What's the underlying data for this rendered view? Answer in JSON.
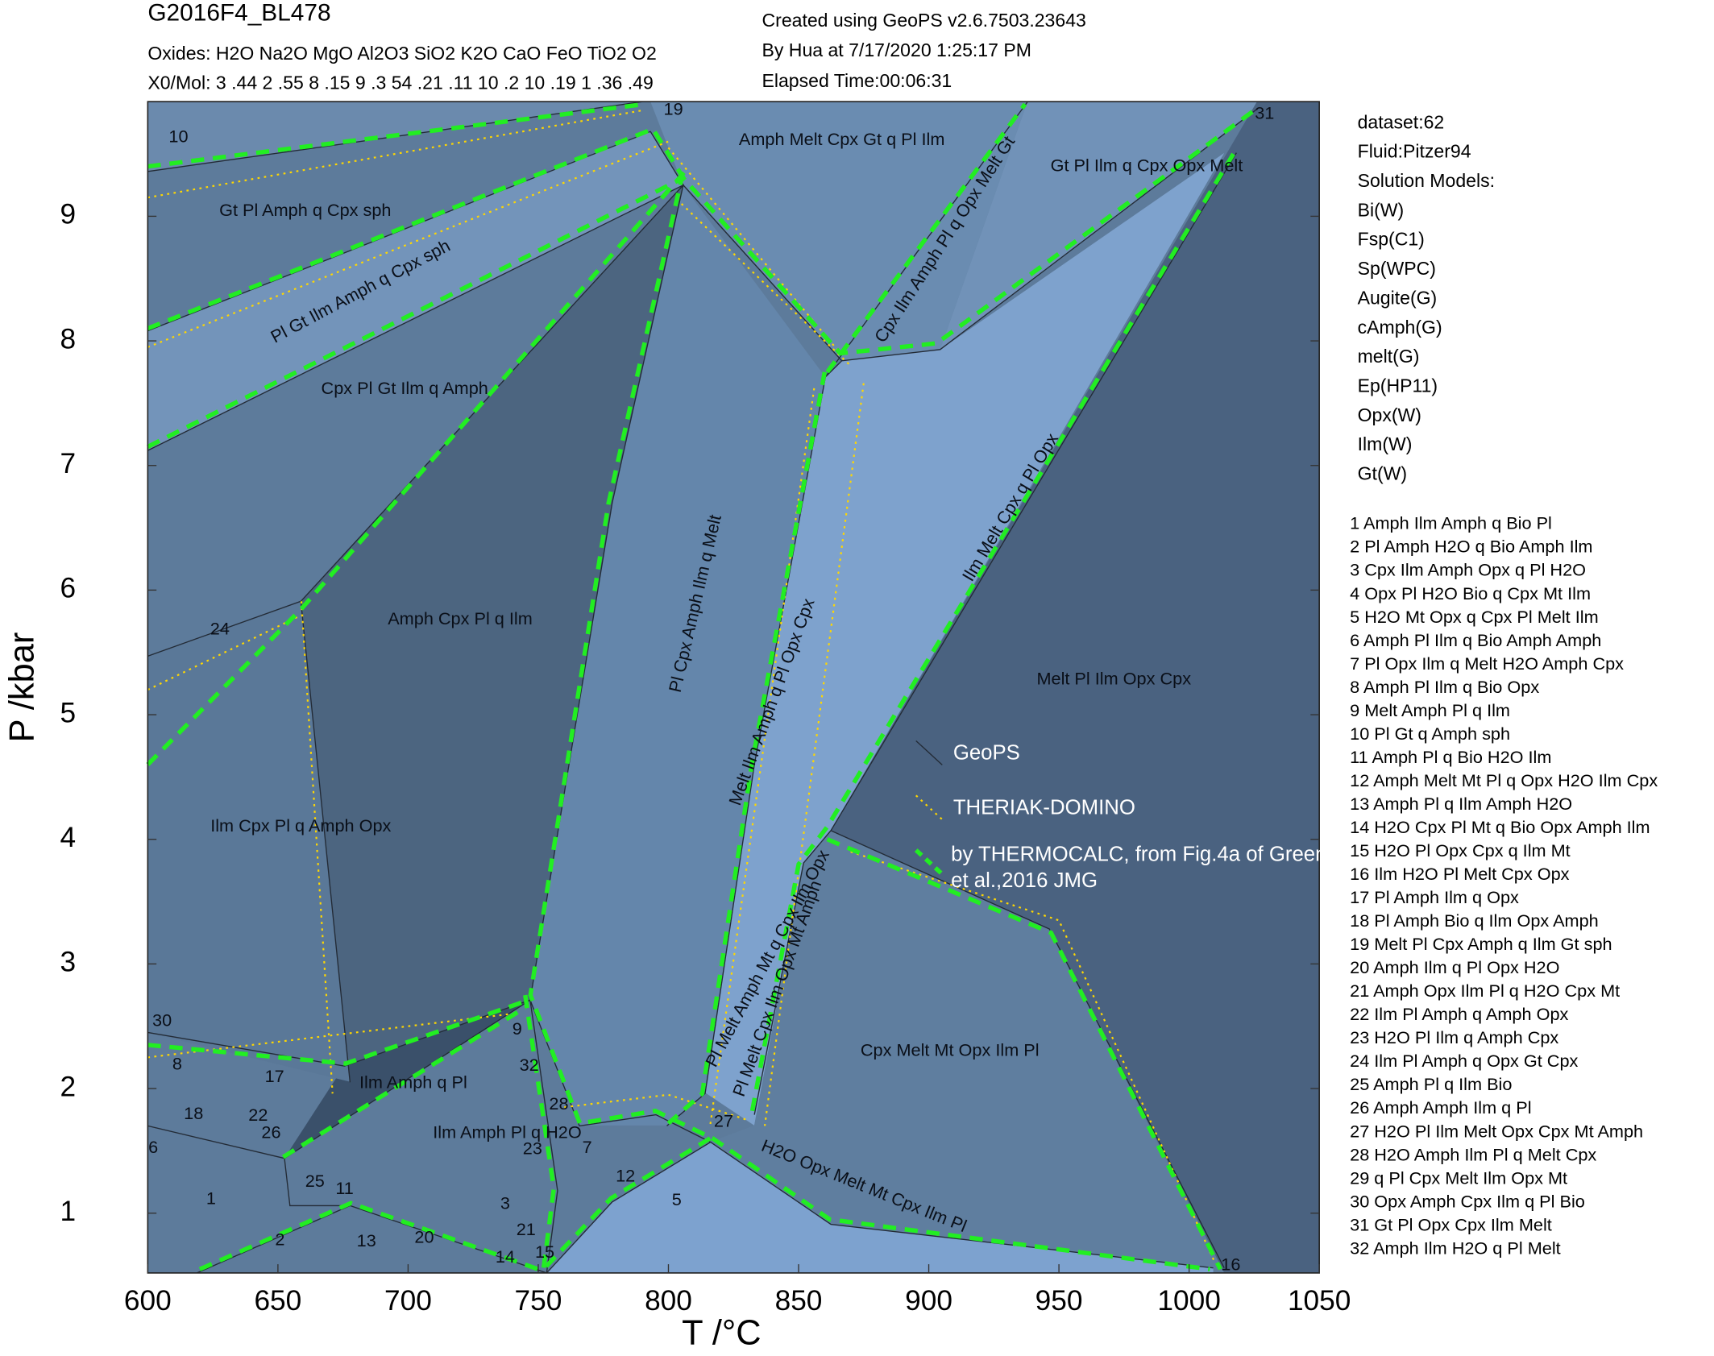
{
  "chart_data": {
    "type": "phase-diagram",
    "title": "G2016F4_BL478",
    "oxides": "Oxides: H2O Na2O MgO Al2O3 SiO2 K2O CaO FeO TiO2 O2",
    "composition": "X0/Mol: 3 .44 2 .55 8 .15 9 .3 54 .21 .11 10 .2 10 .19 1 .36 .49",
    "created": "Created using GeoPS v2.6.7503.23643",
    "author": "By Hua at 7/17/2020 1:25:17 PM",
    "elapsed": "Elapsed Time:00:06:31",
    "x_label": "T /°C",
    "y_label": "P /kbar",
    "xlim": [
      600,
      1050
    ],
    "ylim": [
      0.52,
      9.92
    ],
    "xticks": [
      600,
      650,
      700,
      750,
      800,
      850,
      900,
      950,
      1000,
      1050
    ],
    "yticks": [
      1,
      2,
      3,
      4,
      5,
      6,
      7,
      8,
      9
    ],
    "series": [
      {
        "name": "GeoPS",
        "color": "#232b36",
        "style": "solid",
        "x": [
          600,
          790.2,
          null,
          600,
          793.1,
          805.7,
          866.6,
          904.4,
          1026.1,
          null,
          600,
          805.7,
          778.4,
          746.9,
          765.8,
          795.2,
          816.2,
          862.4,
          1009.3,
          null,
          860.3,
          938,
          null,
          866.6,
          860.3,
          833,
          814.1,
          799.4,
          null,
          1018.2,
          862.4,
          851.9,
          833,
          null,
          862.4,
          946.3,
          1013.5,
          null,
          816.2,
          778.4,
          753.2,
          null,
          600,
          658.8,
          805.7,
          null,
          658.8,
          677.7,
          null,
          600,
          675.6,
          746.9,
          null,
          652.5,
          746.9,
          null,
          746.9,
          757.4,
          753.2,
          null,
          618.9,
          677.7,
          753.2,
          null,
          652.5,
          654.6,
          677.7,
          null,
          600,
          652.5
        ],
        "values": [
          9.36,
          9.92,
          null,
          8.08,
          9.68,
          9.25,
          7.84,
          7.93,
          9.86,
          null,
          7.12,
          9.25,
          6.7,
          2.71,
          1.7,
          1.79,
          1.57,
          0.91,
          0.56,
          null,
          7.71,
          9.92,
          null,
          7.84,
          7.71,
          4.6,
          1.96,
          1.7,
          null,
          9.51,
          4.07,
          3.81,
          1.79,
          null,
          4.07,
          3.28,
          0.56,
          null,
          1.57,
          1.09,
          0.52,
          null,
          5.47,
          5.91,
          9.25,
          null,
          5.91,
          2.05,
          null,
          2.45,
          2.18,
          2.71,
          null,
          1.44,
          2.71,
          null,
          2.71,
          1.18,
          0.52,
          null,
          0.52,
          1.06,
          0.52,
          null,
          1.44,
          1.06,
          1.06,
          null,
          1.7,
          1.44
        ]
      },
      {
        "name": "THERIAK-DOMINO",
        "color": "#ffd700",
        "style": "dotted",
        "x": [
          600,
          790,
          null,
          600,
          800,
          null,
          856,
          816,
          null,
          875,
          837,
          null,
          659,
          671,
          null,
          600,
          659,
          null,
          800,
          866,
          null,
          805,
          870,
          null,
          600,
          740,
          null,
          760,
          800,
          830,
          null,
          870,
          950,
          1010
        ],
        "values": [
          9.15,
          9.85,
          null,
          7.95,
          9.6,
          null,
          7.62,
          1.7,
          null,
          7.66,
          1.7,
          null,
          5.91,
          1.96,
          null,
          5.2,
          5.8,
          null,
          9.55,
          7.9,
          null,
          9.1,
          7.8,
          null,
          2.25,
          2.6,
          null,
          1.85,
          1.95,
          1.75,
          null,
          3.9,
          3.35,
          0.6
        ]
      },
      {
        "name": "by THERMOCALC, from Fig.4a of Green et al.,2016 JMG",
        "color": "#22ee22",
        "style": "dashed",
        "x": [
          600,
          791,
          null,
          600,
          794,
          806,
          866,
          903,
          1027,
          null,
          600,
          805,
          777,
          747,
          766,
          795,
          817,
          862,
          1008,
          null,
          861,
          937,
          null,
          860,
          832,
          813,
          800,
          null,
          1017,
          861,
          850,
          832,
          null,
          861,
          947,
          1012,
          null,
          816,
          778,
          752,
          null,
          600,
          659,
          806,
          null,
          600,
          676,
          745,
          null,
          652,
          745,
          null,
          745,
          756,
          752,
          null,
          620,
          678,
          750
        ],
        "values": [
          9.4,
          9.9,
          null,
          8.1,
          9.7,
          9.3,
          7.9,
          7.98,
          9.88,
          null,
          7.15,
          9.3,
          6.7,
          2.75,
          1.72,
          1.82,
          1.6,
          0.95,
          0.55,
          null,
          7.75,
          9.9,
          null,
          7.75,
          4.6,
          1.96,
          1.72,
          null,
          9.5,
          4.1,
          3.8,
          1.8,
          null,
          4.0,
          3.25,
          0.55,
          null,
          1.6,
          1.12,
          0.55,
          null,
          4.6,
          5.85,
          9.35,
          null,
          2.35,
          2.2,
          2.7,
          null,
          1.45,
          2.65,
          null,
          2.75,
          1.2,
          0.55,
          null,
          0.55,
          1.08,
          0.55
        ]
      }
    ],
    "annotations": [
      {
        "text": "10",
        "x": 611.8,
        "y": 9.63
      },
      {
        "text": "19",
        "x": 801.9,
        "y": 9.85
      },
      {
        "text": "Amph Melt Cpx Gt q Pl Ilm",
        "x": 866.6,
        "y": 9.61
      },
      {
        "text": "31",
        "x": 1029,
        "y": 9.82
      },
      {
        "text": "Gt Pl Ilm q Cpx Opx Melt",
        "x": 983.7,
        "y": 9.4
      },
      {
        "text": "Gt Pl Amph q Cpx sph",
        "x": 660.5,
        "y": 9.04
      },
      {
        "text": "Pl Gt Ilm Amph q Cpx sph",
        "x": 681.9,
        "y": 8.39
      },
      {
        "text": "Cpx Pl Gt Ilm q Amph",
        "x": 698.7,
        "y": 7.61
      },
      {
        "text": "Cpx Ilm Amph Pl q Opx Melt Gt",
        "x": 906.5,
        "y": 8.81
      },
      {
        "text": "Ilm Melt Cpx q Pl Opx",
        "x": 931.7,
        "y": 6.66
      },
      {
        "text": "Amph Cpx Pl q Ilm",
        "x": 720,
        "y": 5.76
      },
      {
        "text": "Pl Cpx Amph Ilm q Melt",
        "x": 810.7,
        "y": 5.89
      },
      {
        "text": "Melt Ilm Amph q Pl Opx Cpx",
        "x": 840.1,
        "y": 5.1
      },
      {
        "text": "Melt Pl Ilm Opx Cpx",
        "x": 971.1,
        "y": 5.28
      },
      {
        "text": "24",
        "x": 627.7,
        "y": 5.68
      },
      {
        "text": "Ilm Cpx Pl q Amph Opx",
        "x": 658.8,
        "y": 4.1
      },
      {
        "text": "Cpx Melt Mt Opx Ilm Pl",
        "x": 908.1,
        "y": 2.3
      },
      {
        "text": "30",
        "x": 605.5,
        "y": 2.54
      },
      {
        "text": "8",
        "x": 611.3,
        "y": 2.19
      },
      {
        "text": "17",
        "x": 648.7,
        "y": 2.09
      },
      {
        "text": "Ilm Amph q Pl",
        "x": 702,
        "y": 2.04
      },
      {
        "text": "9",
        "x": 741.9,
        "y": 2.47
      },
      {
        "text": "32",
        "x": 746.5,
        "y": 2.18
      },
      {
        "text": "28",
        "x": 757.9,
        "y": 1.87
      },
      {
        "text": "Ilm Amph Pl q H2O",
        "x": 738.1,
        "y": 1.64
      },
      {
        "text": "18",
        "x": 617.6,
        "y": 1.79
      },
      {
        "text": "22",
        "x": 642.4,
        "y": 1.78
      },
      {
        "text": "26",
        "x": 647.4,
        "y": 1.64
      },
      {
        "text": "6",
        "x": 602.1,
        "y": 1.52
      },
      {
        "text": "23",
        "x": 747.8,
        "y": 1.51
      },
      {
        "text": "7",
        "x": 768.8,
        "y": 1.52
      },
      {
        "text": "12",
        "x": 783.5,
        "y": 1.29
      },
      {
        "text": "27",
        "x": 821.2,
        "y": 1.73
      },
      {
        "text": "Pl Melt Amph Mt q Cpx Ilm Opx",
        "x": 838.4,
        "y": 3.04
      },
      {
        "text": "Pl Melt Cpx Ilm Opx Mt Amph",
        "x": 842.2,
        "y": 2.8
      },
      {
        "text": "H2O Opx Melt Mt Cpx Ilm Pl",
        "x": 875,
        "y": 1.21
      },
      {
        "text": "1",
        "x": 624.3,
        "y": 1.11
      },
      {
        "text": "25",
        "x": 664.2,
        "y": 1.25
      },
      {
        "text": "11",
        "x": 675.6,
        "y": 1.19
      },
      {
        "text": "3",
        "x": 737.3,
        "y": 1.07
      },
      {
        "text": "5",
        "x": 803.2,
        "y": 1.1
      },
      {
        "text": "2",
        "x": 650.8,
        "y": 0.78
      },
      {
        "text": "13",
        "x": 684,
        "y": 0.77
      },
      {
        "text": "21",
        "x": 745.3,
        "y": 0.86
      },
      {
        "text": "20",
        "x": 706.2,
        "y": 0.8
      },
      {
        "text": "14",
        "x": 737.3,
        "y": 0.64
      },
      {
        "text": "15",
        "x": 752.5,
        "y": 0.68
      },
      {
        "text": "16",
        "x": 1016,
        "y": 0.58
      }
    ],
    "info": [
      "dataset:62",
      "Fluid:Pitzer94",
      "Solution Models:",
      "Bi(W)",
      "Fsp(C1)",
      "Sp(WPC)",
      "Augite(G)",
      "cAmph(G)",
      "melt(G)",
      "Ep(HP11)",
      "Opx(W)",
      "Ilm(W)",
      "Gt(W)"
    ],
    "assemblages": [
      "1 Amph Ilm Amph q Bio Pl",
      "2 Pl Amph H2O q Bio Amph Ilm",
      "3 Cpx Ilm Amph Opx q Pl H2O",
      "4 Opx Pl H2O Bio q Cpx Mt Ilm",
      "5 H2O Mt Opx q Cpx Pl Melt Ilm",
      "6 Amph Pl Ilm q Bio Amph Amph",
      "7 Pl Opx Ilm q Melt H2O Amph Cpx",
      "8 Amph Pl Ilm q Bio Opx",
      "9 Melt Amph Pl q Ilm",
      "10 Pl Gt q Amph sph",
      "11 Amph Pl q Bio H2O Ilm",
      "12 Amph Melt Mt Pl q Opx H2O Ilm Cpx",
      "13 Amph Pl q Ilm Amph H2O",
      "14 H2O Cpx Pl Mt q Bio Opx Amph Ilm",
      "15 H2O Pl Opx Cpx q Ilm Mt",
      "16 Ilm H2O Pl Melt Cpx Opx",
      "17 Pl Amph Ilm q Opx",
      "18 Pl Amph Bio q Ilm Opx Amph",
      "19 Melt Pl Cpx Amph q Ilm Gt sph",
      "20 Amph Ilm q Pl Opx H2O",
      "21 Amph Opx Ilm Pl q H2O Cpx Mt",
      "22 Ilm Pl Amph q Amph Opx",
      "23 H2O Pl Ilm q Amph Cpx",
      "24 Ilm Pl Amph q Opx Gt Cpx",
      "25 Amph Pl q Ilm Bio",
      "26 Amph Amph Ilm q Pl",
      "27 H2O Pl Ilm Melt Opx Cpx Mt Amph",
      "28 H2O Amph Ilm Pl q Melt Cpx",
      "29 q Pl Cpx Melt Ilm Opx Mt",
      "30 Opx Amph Cpx Ilm q Pl Bio",
      "31 Gt Pl Opx Cpx Ilm Melt",
      "32 Amph Ilm H2O q Pl Melt"
    ]
  }
}
